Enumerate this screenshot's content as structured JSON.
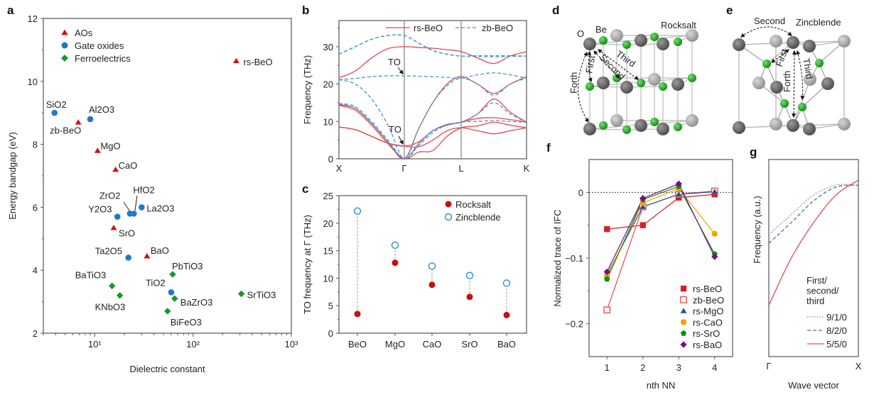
{
  "panel_letters": [
    "a",
    "b",
    "c",
    "d",
    "e",
    "f",
    "g"
  ],
  "colors": {
    "aos": "#d0121b",
    "gate_oxides": "#1f78c8",
    "ferroelectrics": "#159a2a",
    "rs": "#e8474c",
    "zb": "#3c9ad8",
    "rocksalt_dot": "#cc0d0d",
    "zincblende_ring": "#2a8fd6"
  },
  "chart_data": [
    {
      "panel": "a",
      "type": "scatter",
      "xlabel": "Dielectric constant",
      "ylabel": "Energy bandgap (eV)",
      "xscale": "log",
      "xlim": [
        3,
        1000
      ],
      "ylim": [
        2,
        12
      ],
      "xticks": [
        {
          "v": 10,
          "label": "10¹"
        },
        {
          "v": 100,
          "label": "10²"
        },
        {
          "v": 1000,
          "label": "10³"
        }
      ],
      "yticks": [
        2,
        4,
        6,
        8,
        10,
        12
      ],
      "legend": {
        "placement": "top-left",
        "entries": [
          {
            "name": "AOs",
            "marker": "triangle",
            "color": "#d0121b"
          },
          {
            "name": "Gate oxides",
            "marker": "circle",
            "color": "#1f78c8"
          },
          {
            "name": "Ferroelectrics",
            "marker": "diamond",
            "color": "#159a2a"
          }
        ]
      },
      "points": [
        {
          "label": "SiO2",
          "group": "Gate oxides",
          "x": 3.9,
          "y": 9.0
        },
        {
          "label": "zb-BeO",
          "group": "AOs",
          "x": 6.8,
          "y": 8.7
        },
        {
          "label": "Al2O3",
          "group": "Gate oxides",
          "x": 9,
          "y": 8.8
        },
        {
          "label": "MgO",
          "group": "AOs",
          "x": 10.7,
          "y": 7.8
        },
        {
          "label": "CaO",
          "group": "AOs",
          "x": 16.3,
          "y": 7.2
        },
        {
          "label": "Y2O3",
          "group": "Gate oxides",
          "x": 17,
          "y": 5.7
        },
        {
          "label": "ZrO2",
          "group": "Gate oxides",
          "x": 22.8,
          "y": 5.8
        },
        {
          "label": "HfO2",
          "group": "Gate oxides",
          "x": 25,
          "y": 5.8
        },
        {
          "label": "La2O3",
          "group": "Gate oxides",
          "x": 30,
          "y": 6.0
        },
        {
          "label": "SrO",
          "group": "AOs",
          "x": 15.6,
          "y": 5.35
        },
        {
          "label": "Ta2O5",
          "group": "Gate oxides",
          "x": 22,
          "y": 4.4
        },
        {
          "label": "BaO",
          "group": "AOs",
          "x": 34,
          "y": 4.45
        },
        {
          "label": "BaTiO3",
          "group": "Ferroelectrics",
          "x": 15,
          "y": 3.5
        },
        {
          "label": "KNbO3",
          "group": "Ferroelectrics",
          "x": 18,
          "y": 3.2
        },
        {
          "label": "PbTiO3",
          "group": "Ferroelectrics",
          "x": 62,
          "y": 3.87
        },
        {
          "label": "TiO2",
          "group": "Gate oxides",
          "x": 60,
          "y": 3.3
        },
        {
          "label": "BaZrO3",
          "group": "Ferroelectrics",
          "x": 65,
          "y": 3.1
        },
        {
          "label": "BiFeO3",
          "group": "Ferroelectrics",
          "x": 55,
          "y": 2.7
        },
        {
          "label": "SrTiO3",
          "group": "Ferroelectrics",
          "x": 310,
          "y": 3.25
        },
        {
          "label": "rs-BeO",
          "group": "AOs",
          "x": 275,
          "y": 10.65
        }
      ]
    },
    {
      "panel": "b",
      "type": "line",
      "ylabel": "Frequency (THz)",
      "ylim": [
        0,
        37
      ],
      "yticks": [
        0,
        10,
        20,
        30
      ],
      "kpath": [
        "X",
        "Γ",
        "L",
        "K"
      ],
      "annotations": [
        "TO",
        "TO"
      ],
      "legend": {
        "placement": "top-right"
      },
      "series": [
        {
          "name": "rs-BeO",
          "style": "solid",
          "color": "#e8474c",
          "bands": [
            [
              8.5,
              7.8,
              6.0,
              4.2,
              3.4,
              3.4,
              3.2,
              5.0,
              7.5,
              8.3,
              8.3,
              7.5,
              6.7,
              7.5,
              8.3
            ],
            [
              14.3,
              13.0,
              9.0,
              4.0,
              0,
              0,
              1.8,
              2.2,
              6.0,
              8.3,
              8.3,
              8.8,
              9.8,
              9.0,
              8.3
            ],
            [
              14.5,
              13.5,
              9.5,
              4.5,
              0,
              0,
              4.0,
              7.5,
              9.0,
              9.8,
              9.8,
              10.8,
              11.0,
              10.5,
              9.8
            ],
            [
              14.5,
              13.5,
              9.5,
              4.5,
              0,
              0,
              8.0,
              15.0,
              20.0,
              22.0,
              22.0,
              20.0,
              17.5,
              20.0,
              22.0
            ],
            [
              8.5,
              7.8,
              6.0,
              4.2,
              3.4,
              3.4,
              4.5,
              7.5,
              9.2,
              9.8,
              9.8,
              12.0,
              16.0,
              12.5,
              9.8
            ],
            [
              21.7,
              23.5,
              27.0,
              29.5,
              30.0,
              30.0,
              29.8,
              29.6,
              29.2,
              28.7,
              28.7,
              27.0,
              25.5,
              27.5,
              28.7
            ]
          ]
        },
        {
          "name": "zb-BeO",
          "style": "dashed",
          "color": "#3c9ad8",
          "bands": [
            [
              28.0,
              30.0,
              32.0,
              33.0,
              33.0,
              33.0,
              31.0,
              29.0,
              28.0,
              27.5,
              27.5,
              27.6,
              27.6,
              27.6,
              27.5
            ],
            [
              28.0,
              30.0,
              32.0,
              33.0,
              33.0,
              33.0,
              31.0,
              29.0,
              28.0,
              27.5,
              27.5,
              27.4,
              27.3,
              27.4,
              27.5
            ],
            [
              21.2,
              21.5,
              22.0,
              22.2,
              22.2,
              22.2,
              22.1,
              22.0,
              21.8,
              21.6,
              21.6,
              22.5,
              23.0,
              22.5,
              21.6
            ],
            [
              21.2,
              20.0,
              16.0,
              9.0,
              0,
              0,
              8.0,
              15.0,
              19.5,
              21.6,
              21.6,
              20.0,
              17.0,
              20.0,
              21.6
            ],
            [
              14.8,
              14.0,
              10.0,
              5.0,
              0,
              0,
              3.5,
              7.0,
              9.0,
              9.8,
              9.8,
              12.0,
              15.0,
              12.0,
              9.8
            ],
            [
              14.8,
              13.5,
              9.5,
              4.5,
              0,
              0,
              4.0,
              7.5,
              9.0,
              9.8,
              9.8,
              10.0,
              10.2,
              10.0,
              9.8
            ]
          ]
        }
      ]
    },
    {
      "panel": "c",
      "type": "scatter",
      "ylabel": "TO frequency at Γ (THz)",
      "ylim": [
        0,
        25
      ],
      "yticks": [
        0,
        5,
        10,
        15,
        20,
        25
      ],
      "categories": [
        "BeO",
        "MgO",
        "CaO",
        "SrO",
        "BaO"
      ],
      "legend": {
        "placement": "top-right"
      },
      "series": [
        {
          "name": "Rocksalt",
          "marker": "filled-circle",
          "color": "#cc0d0d",
          "values": [
            3.5,
            12.8,
            8.8,
            6.6,
            3.3
          ]
        },
        {
          "name": "Zincblende",
          "marker": "open-circle",
          "color": "#2a8fd6",
          "values": [
            22.2,
            16.0,
            12.2,
            10.5,
            9.1
          ]
        }
      ]
    },
    {
      "panel": "f",
      "type": "line",
      "xlabel": "nth NN",
      "ylabel": "Normalized trace of IFC",
      "xlim": [
        0.5,
        4.5
      ],
      "ylim": [
        -0.25,
        0.05
      ],
      "xticks": [
        1,
        2,
        3,
        4
      ],
      "yticks": [
        {
          "v": 0,
          "label": "0"
        },
        {
          "v": -0.1,
          "label": "−0.1"
        },
        {
          "v": -0.2,
          "label": "−0.2"
        }
      ],
      "reference_line": 0,
      "legend": {
        "placement": "bottom-right"
      },
      "x": [
        1,
        2,
        3,
        4
      ],
      "series": [
        {
          "name": "rs-BeO",
          "marker": "filled-square",
          "color": "#d81e2a",
          "values": [
            -0.056,
            -0.05,
            -0.008,
            -0.003
          ]
        },
        {
          "name": "zb-BeO",
          "marker": "open-square",
          "color": "#e8474c",
          "values": [
            -0.179,
            -0.022,
            -0.003,
            0.002
          ]
        },
        {
          "name": "rs-MgO",
          "marker": "triangle",
          "color": "#2b4f8e",
          "values": [
            -0.125,
            -0.022,
            -0.003,
            0.001
          ]
        },
        {
          "name": "rs-CaO",
          "marker": "circle",
          "color": "#f5a300",
          "values": [
            -0.127,
            -0.016,
            0.006,
            -0.063
          ]
        },
        {
          "name": "rs-SrO",
          "marker": "pentagon",
          "color": "#138a13",
          "values": [
            -0.132,
            -0.011,
            0.009,
            -0.094
          ]
        },
        {
          "name": "rs-BaO",
          "marker": "diamond",
          "color": "#7b0a8a",
          "values": [
            -0.121,
            -0.009,
            0.013,
            -0.098
          ]
        }
      ]
    },
    {
      "panel": "g",
      "type": "line",
      "xlabel": "Wave vector",
      "ylabel": "Frequency (a.u.)",
      "xticklabels": [
        "Γ",
        "X"
      ],
      "legend": {
        "placement": "bottom-right",
        "title": [
          "First/",
          "second/",
          "third"
        ]
      },
      "x": [
        0,
        0.25,
        0.5,
        0.75,
        1
      ],
      "series": [
        {
          "name": "9/1/0",
          "style": "dotted",
          "color": "#888888",
          "values": [
            0.62,
            0.72,
            0.82,
            0.87,
            0.87
          ]
        },
        {
          "name": "8/2/0",
          "style": "dashed",
          "color": "#4a6fb0",
          "values": [
            0.575,
            0.68,
            0.79,
            0.86,
            0.87
          ]
        },
        {
          "name": "5/5/0",
          "style": "solid",
          "color": "#e8474c",
          "values": [
            0.26,
            0.5,
            0.68,
            0.82,
            0.895
          ]
        }
      ]
    }
  ],
  "diagrams": {
    "d": {
      "title": "Rocksalt",
      "atom_labels": [
        "O",
        "Be"
      ],
      "arrows": [
        "First",
        "Second",
        "Third",
        "Forth"
      ]
    },
    "e": {
      "title": "Zincblende",
      "arrows": [
        "Second",
        "First",
        "Forth",
        "Third"
      ]
    }
  }
}
